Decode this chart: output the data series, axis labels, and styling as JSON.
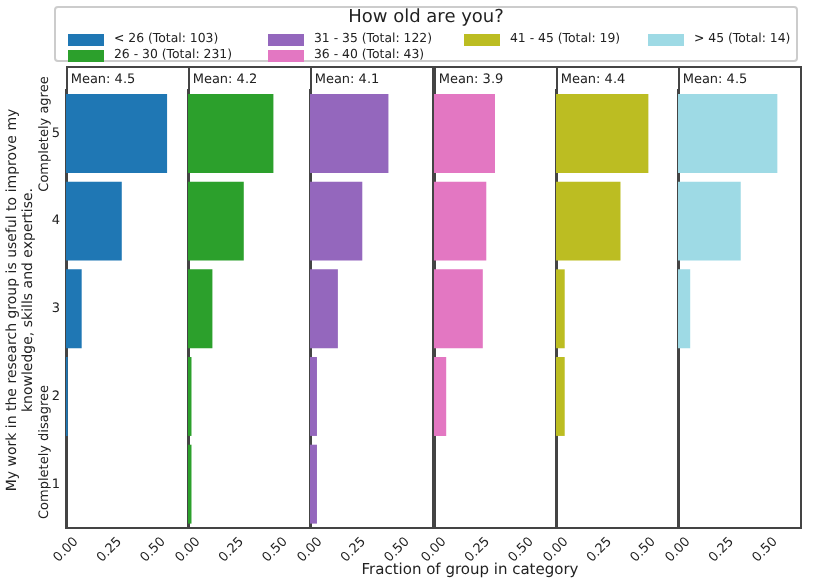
{
  "chart_data": [
    {
      "type": "bar",
      "orientation": "horizontal",
      "title": "Mean: 4.5",
      "legend": "top",
      "legend_title": "How old are you?",
      "ylabel": "My work in the research group is useful to improve my knowledge, skills and expertise.",
      "annotations": [
        "Completely agree",
        "Completely disagree"
      ],
      "categories": [
        "5",
        "4",
        "3",
        "2",
        "1"
      ],
      "xlim": [
        0,
        0.7
      ],
      "xticks": [
        {
          "value": 0,
          "label": "0.00"
        },
        {
          "value": 0.25,
          "label": "0.25"
        },
        {
          "value": 0.5,
          "label": "0.50"
        }
      ],
      "series": [
        {
          "name": "< 26 (Total: 103)",
          "color": "#1f77b4",
          "values": [
            0.58,
            0.32,
            0.09,
            0.01,
            0
          ]
        }
      ]
    },
    {
      "type": "bar",
      "orientation": "horizontal",
      "title": "Mean: 4.2",
      "legend": "top",
      "tick_labels": "x",
      "categories": [
        "5",
        "4",
        "3",
        "2",
        "1"
      ],
      "xlim": [
        0,
        0.7
      ],
      "xticks": [
        {
          "value": 0,
          "label": "0.00"
        },
        {
          "value": 0.25,
          "label": "0.25"
        },
        {
          "value": 0.5,
          "label": "0.50"
        }
      ],
      "series": [
        {
          "name": "26 - 30 (Total: 231)",
          "color": "#2ca02c",
          "values": [
            0.49,
            0.32,
            0.14,
            0.02,
            0.02
          ]
        }
      ]
    },
    {
      "type": "bar",
      "orientation": "horizontal",
      "title": "Mean: 4.1",
      "legend": "top",
      "tick_labels": "x",
      "categories": [
        "5",
        "4",
        "3",
        "2",
        "1"
      ],
      "xlim": [
        0,
        0.7
      ],
      "xticks": [
        {
          "value": 0,
          "label": "0.00"
        },
        {
          "value": 0.25,
          "label": "0.25"
        },
        {
          "value": 0.5,
          "label": "0.50"
        }
      ],
      "series": [
        {
          "name": "31 - 35 (Total: 122)",
          "color": "#9467bd",
          "values": [
            0.45,
            0.3,
            0.16,
            0.04,
            0.04
          ]
        }
      ]
    },
    {
      "type": "bar",
      "orientation": "horizontal",
      "title": "Mean: 3.9",
      "legend": "top",
      "xlabel": "Fraction of group in category",
      "tick_labels": "x",
      "categories": [
        "5",
        "4",
        "3",
        "2",
        "1"
      ],
      "xlim": [
        0,
        0.7
      ],
      "xticks": [
        {
          "value": 0,
          "label": "0.00"
        },
        {
          "value": 0.25,
          "label": "0.25"
        },
        {
          "value": 0.5,
          "label": "0.50"
        }
      ],
      "series": [
        {
          "name": "36 - 40 (Total: 43)",
          "color": "#e377c2",
          "values": [
            0.35,
            0.3,
            0.28,
            0.07,
            0
          ]
        }
      ]
    },
    {
      "type": "bar",
      "orientation": "horizontal",
      "title": "Mean: 4.4",
      "legend": "top",
      "tick_labels": "x",
      "categories": [
        "5",
        "4",
        "3",
        "2",
        "1"
      ],
      "xlim": [
        0,
        0.7
      ],
      "xticks": [
        {
          "value": 0,
          "label": "0.00"
        },
        {
          "value": 0.25,
          "label": "0.25"
        },
        {
          "value": 0.5,
          "label": "0.50"
        }
      ],
      "series": [
        {
          "name": "41 - 45 (Total: 19)",
          "color": "#bcbd22",
          "values": [
            0.53,
            0.37,
            0.05,
            0.05,
            0
          ]
        }
      ]
    },
    {
      "type": "bar",
      "orientation": "horizontal",
      "title": "Mean: 4.5",
      "legend": "top",
      "tick_labels": "x",
      "categories": [
        "5",
        "4",
        "3",
        "2",
        "1"
      ],
      "xlim": [
        0,
        0.7
      ],
      "xticks": [
        {
          "value": 0,
          "label": "0.00"
        },
        {
          "value": 0.25,
          "label": "0.25"
        },
        {
          "value": 0.5,
          "label": "0.50"
        }
      ],
      "series": [
        {
          "name": "> 45 (Total: 14)",
          "color": "#9edae5",
          "values": [
            0.57,
            0.36,
            0.07,
            0,
            0
          ]
        }
      ]
    }
  ]
}
